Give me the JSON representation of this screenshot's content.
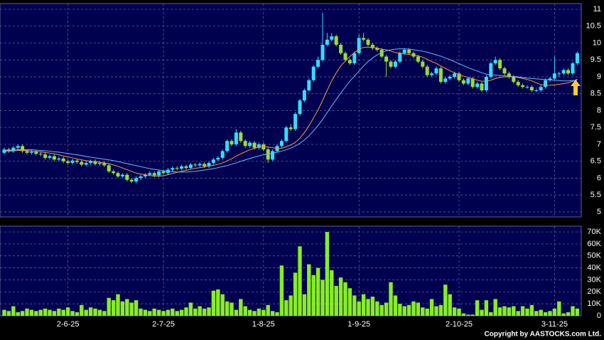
{
  "chart_data": [
    {
      "type": "candlestick",
      "up_color": "#33ddff",
      "down_color": "#99dd33",
      "grid": true,
      "ylim": [
        4.85,
        11.17
      ],
      "yticks": [
        5,
        5.5,
        6,
        6.5,
        7,
        7.5,
        8,
        8.5,
        9,
        9.5,
        10,
        10.5,
        11
      ],
      "ohlc": [
        [
          6.75,
          6.9,
          6.7,
          6.85
        ],
        [
          6.85,
          6.9,
          6.75,
          6.8
        ],
        [
          6.8,
          6.95,
          6.75,
          6.9
        ],
        [
          6.9,
          7.0,
          6.85,
          6.95
        ],
        [
          6.95,
          7.0,
          6.75,
          6.8
        ],
        [
          6.8,
          6.85,
          6.7,
          6.75
        ],
        [
          6.75,
          6.83,
          6.7,
          6.78
        ],
        [
          6.78,
          6.83,
          6.67,
          6.72
        ],
        [
          6.72,
          6.77,
          6.65,
          6.7
        ],
        [
          6.7,
          6.75,
          6.55,
          6.6
        ],
        [
          6.6,
          6.7,
          6.55,
          6.65
        ],
        [
          6.65,
          6.7,
          6.5,
          6.55
        ],
        [
          6.55,
          6.63,
          6.5,
          6.58
        ],
        [
          6.58,
          6.63,
          6.45,
          6.5
        ],
        [
          6.5,
          6.55,
          6.4,
          6.45
        ],
        [
          6.45,
          6.57,
          6.4,
          6.52
        ],
        [
          6.52,
          6.57,
          6.43,
          6.48
        ],
        [
          6.48,
          6.53,
          6.35,
          6.4
        ],
        [
          6.4,
          6.5,
          6.35,
          6.45
        ],
        [
          6.45,
          6.55,
          6.4,
          6.5
        ],
        [
          6.5,
          6.55,
          6.37,
          6.42
        ],
        [
          6.42,
          6.5,
          6.37,
          6.45
        ],
        [
          6.45,
          6.5,
          6.33,
          6.38
        ],
        [
          6.38,
          6.43,
          6.15,
          6.2
        ],
        [
          6.2,
          6.25,
          6.1,
          6.15
        ],
        [
          6.15,
          6.2,
          6.0,
          6.05
        ],
        [
          6.05,
          6.15,
          6.0,
          6.1
        ],
        [
          6.1,
          6.15,
          5.9,
          5.95
        ],
        [
          5.95,
          6.0,
          5.85,
          5.9
        ],
        [
          5.9,
          6.05,
          5.85,
          6.0
        ],
        [
          6.0,
          6.1,
          5.95,
          6.05
        ],
        [
          6.05,
          6.15,
          6.0,
          6.1
        ],
        [
          6.1,
          6.2,
          6.05,
          6.15
        ],
        [
          6.15,
          6.2,
          6.03,
          6.08
        ],
        [
          6.08,
          6.25,
          6.03,
          6.2
        ],
        [
          6.2,
          6.25,
          6.1,
          6.15
        ],
        [
          6.15,
          6.3,
          6.1,
          6.25
        ],
        [
          6.25,
          6.35,
          6.2,
          6.3
        ],
        [
          6.3,
          6.35,
          6.23,
          6.28
        ],
        [
          6.28,
          6.4,
          6.23,
          6.35
        ],
        [
          6.35,
          6.4,
          6.25,
          6.3
        ],
        [
          6.3,
          6.45,
          6.25,
          6.4
        ],
        [
          6.4,
          6.45,
          6.33,
          6.38
        ],
        [
          6.38,
          6.47,
          6.33,
          6.42
        ],
        [
          6.42,
          6.47,
          6.3,
          6.35
        ],
        [
          6.35,
          6.5,
          6.3,
          6.45
        ],
        [
          6.45,
          6.6,
          6.4,
          6.55
        ],
        [
          6.55,
          6.65,
          6.5,
          6.6
        ],
        [
          6.6,
          6.85,
          6.55,
          6.8
        ],
        [
          6.8,
          7.15,
          6.75,
          7.1
        ],
        [
          7.1,
          7.15,
          6.95,
          7.0
        ],
        [
          7.0,
          7.45,
          6.95,
          7.35
        ],
        [
          7.35,
          7.4,
          7.05,
          7.1
        ],
        [
          7.1,
          7.15,
          6.9,
          6.95
        ],
        [
          6.95,
          7.1,
          6.9,
          7.05
        ],
        [
          7.05,
          7.1,
          6.85,
          6.9
        ],
        [
          6.9,
          7.05,
          6.85,
          7.0
        ],
        [
          7.0,
          7.05,
          6.8,
          6.85
        ],
        [
          6.85,
          6.9,
          6.45,
          6.55
        ],
        [
          6.55,
          6.85,
          6.5,
          6.8
        ],
        [
          6.8,
          7.0,
          6.75,
          6.95
        ],
        [
          6.95,
          7.15,
          6.9,
          7.1
        ],
        [
          7.1,
          7.55,
          7.05,
          7.5
        ],
        [
          7.5,
          7.6,
          7.4,
          7.45
        ],
        [
          7.45,
          7.95,
          7.4,
          7.9
        ],
        [
          7.9,
          8.35,
          7.85,
          8.3
        ],
        [
          8.3,
          8.65,
          8.25,
          8.6
        ],
        [
          8.6,
          8.95,
          8.55,
          8.9
        ],
        [
          8.9,
          9.35,
          8.85,
          9.3
        ],
        [
          9.3,
          9.6,
          9.25,
          9.5
        ],
        [
          9.5,
          10.9,
          9.45,
          9.95
        ],
        [
          9.95,
          10.3,
          9.9,
          10.1
        ],
        [
          10.1,
          10.3,
          10.05,
          10.2
        ],
        [
          10.2,
          10.25,
          9.9,
          9.95
        ],
        [
          9.95,
          10.0,
          9.65,
          9.7
        ],
        [
          9.7,
          9.75,
          9.45,
          9.5
        ],
        [
          9.5,
          9.55,
          9.35,
          9.4
        ],
        [
          9.4,
          9.75,
          9.35,
          9.7
        ],
        [
          9.7,
          10.25,
          9.65,
          10.15
        ],
        [
          10.15,
          10.3,
          10.05,
          10.1
        ],
        [
          10.1,
          10.15,
          9.9,
          9.95
        ],
        [
          9.95,
          10.0,
          9.8,
          9.85
        ],
        [
          9.85,
          9.9,
          9.75,
          9.8
        ],
        [
          9.8,
          9.85,
          9.55,
          9.6
        ],
        [
          9.6,
          9.65,
          9.0,
          9.45
        ],
        [
          9.45,
          9.5,
          9.25,
          9.3
        ],
        [
          9.3,
          9.5,
          9.25,
          9.45
        ],
        [
          9.45,
          9.75,
          9.4,
          9.7
        ],
        [
          9.7,
          9.85,
          9.65,
          9.8
        ],
        [
          9.8,
          9.85,
          9.65,
          9.7
        ],
        [
          9.7,
          9.75,
          9.55,
          9.6
        ],
        [
          9.6,
          9.65,
          9.4,
          9.45
        ],
        [
          9.45,
          9.5,
          9.25,
          9.3
        ],
        [
          9.3,
          9.35,
          9.0,
          9.05
        ],
        [
          9.05,
          9.15,
          9.0,
          9.1
        ],
        [
          9.1,
          9.3,
          9.05,
          9.25
        ],
        [
          9.25,
          9.3,
          8.8,
          8.85
        ],
        [
          8.85,
          9.0,
          8.8,
          8.95
        ],
        [
          8.95,
          9.05,
          8.9,
          9.0
        ],
        [
          9.0,
          9.15,
          8.95,
          9.1
        ],
        [
          9.1,
          9.15,
          8.85,
          8.9
        ],
        [
          8.9,
          8.95,
          8.75,
          8.8
        ],
        [
          8.8,
          9.0,
          8.75,
          8.95
        ],
        [
          8.95,
          9.0,
          8.65,
          8.7
        ],
        [
          8.7,
          8.85,
          8.65,
          8.8
        ],
        [
          8.8,
          8.85,
          8.55,
          8.6
        ],
        [
          8.6,
          9.05,
          8.55,
          9.0
        ],
        [
          9.0,
          9.45,
          8.95,
          9.4
        ],
        [
          9.4,
          9.6,
          9.35,
          9.5
        ],
        [
          9.5,
          9.55,
          9.2,
          9.25
        ],
        [
          9.25,
          9.3,
          9.05,
          9.1
        ],
        [
          9.1,
          9.15,
          8.95,
          9.0
        ],
        [
          9.0,
          9.05,
          8.8,
          8.85
        ],
        [
          8.85,
          8.9,
          8.7,
          8.75
        ],
        [
          8.75,
          8.8,
          8.65,
          8.7
        ],
        [
          8.7,
          8.75,
          8.65,
          8.7
        ],
        [
          8.7,
          8.75,
          8.55,
          8.6
        ],
        [
          8.6,
          8.65,
          8.55,
          8.6
        ],
        [
          8.6,
          8.75,
          8.55,
          8.7
        ],
        [
          8.7,
          8.95,
          8.65,
          8.9
        ],
        [
          8.9,
          9.0,
          8.85,
          8.95
        ],
        [
          8.95,
          9.6,
          8.9,
          9.1
        ],
        [
          9.1,
          9.15,
          9.0,
          9.1
        ],
        [
          9.1,
          9.25,
          9.05,
          9.2
        ],
        [
          9.2,
          9.25,
          9.05,
          9.1
        ],
        [
          9.1,
          9.45,
          9.05,
          9.4
        ],
        [
          9.4,
          9.75,
          9.35,
          9.7
        ]
      ],
      "ma_lines": [
        {
          "color": "#ff9933",
          "values": [
            6.8,
            6.8,
            6.8,
            6.82,
            6.82,
            6.82,
            6.8,
            6.79,
            6.78,
            6.76,
            6.74,
            6.72,
            6.69,
            6.66,
            6.63,
            6.6,
            6.57,
            6.54,
            6.52,
            6.5,
            6.49,
            6.47,
            6.45,
            6.43,
            6.39,
            6.35,
            6.3,
            6.25,
            6.2,
            6.15,
            6.12,
            6.1,
            6.08,
            6.06,
            6.06,
            6.07,
            6.1,
            6.14,
            6.17,
            6.2,
            6.23,
            6.26,
            6.29,
            6.31,
            6.33,
            6.36,
            6.38,
            6.41,
            6.45,
            6.51,
            6.57,
            6.65,
            6.72,
            6.78,
            6.84,
            6.88,
            6.92,
            6.93,
            6.92,
            6.9,
            6.88,
            6.88,
            6.93,
            6.98,
            7.06,
            7.18,
            7.35,
            7.55,
            7.78,
            8.02,
            8.3,
            8.6,
            8.88,
            9.12,
            9.32,
            9.47,
            9.6,
            9.72,
            9.82,
            9.87,
            9.88,
            9.87,
            9.85,
            9.82,
            9.8,
            9.76,
            9.72,
            9.7,
            9.68,
            9.66,
            9.64,
            9.62,
            9.58,
            9.52,
            9.45,
            9.4,
            9.32,
            9.25,
            9.18,
            9.12,
            9.07,
            9.02,
            8.98,
            8.94,
            8.9,
            8.87,
            8.87,
            8.9,
            8.95,
            8.98,
            9.0,
            9.0,
            9.0,
            8.98,
            8.95,
            8.92,
            8.88,
            8.82,
            8.77,
            8.75,
            8.75,
            8.76,
            8.78,
            8.8,
            8.82,
            8.87,
            8.93
          ]
        },
        {
          "color": "#66bbff",
          "values": [
            6.82,
            6.82,
            6.83,
            6.84,
            6.84,
            6.84,
            6.84,
            6.83,
            6.82,
            6.81,
            6.8,
            6.78,
            6.77,
            6.75,
            6.73,
            6.71,
            6.69,
            6.67,
            6.64,
            6.62,
            6.6,
            6.58,
            6.56,
            6.54,
            6.52,
            6.49,
            6.46,
            6.43,
            6.4,
            6.37,
            6.34,
            6.31,
            6.28,
            6.26,
            6.24,
            6.22,
            6.2,
            6.19,
            6.18,
            6.18,
            6.18,
            6.19,
            6.2,
            6.22,
            6.24,
            6.26,
            6.28,
            6.31,
            6.34,
            6.37,
            6.41,
            6.45,
            6.5,
            6.54,
            6.58,
            6.62,
            6.66,
            6.69,
            6.71,
            6.74,
            6.77,
            6.8,
            6.84,
            6.89,
            6.95,
            7.03,
            7.13,
            7.25,
            7.4,
            7.56,
            7.74,
            7.94,
            8.14,
            8.33,
            8.52,
            8.7,
            8.87,
            9.02,
            9.17,
            9.32,
            9.45,
            9.56,
            9.65,
            9.72,
            9.77,
            9.8,
            9.82,
            9.83,
            9.83,
            9.82,
            9.8,
            9.78,
            9.76,
            9.73,
            9.69,
            9.65,
            9.61,
            9.56,
            9.51,
            9.45,
            9.39,
            9.33,
            9.27,
            9.22,
            9.17,
            9.12,
            9.08,
            9.06,
            9.05,
            9.04,
            9.03,
            9.02,
            9.01,
            9.0,
            8.98,
            8.96,
            8.95,
            8.94,
            8.93,
            8.92,
            8.91,
            8.9,
            8.89,
            8.88,
            8.88,
            8.89,
            8.9
          ]
        }
      ]
    },
    {
      "type": "bar",
      "color": "#88ee22",
      "grid": true,
      "ylim": [
        0,
        74800
      ],
      "yticks": [
        0,
        {
          "value": 10000,
          "label": "10K"
        },
        {
          "value": 20000,
          "label": "20K"
        },
        {
          "value": 30000,
          "label": "30K"
        },
        {
          "value": 40000,
          "label": "40K"
        },
        {
          "value": 50000,
          "label": "50K"
        },
        {
          "value": 60000,
          "label": "60K"
        },
        {
          "value": 70000,
          "label": "70K"
        }
      ],
      "categories": [
        null,
        null,
        null,
        null,
        null,
        null,
        null,
        null,
        null,
        null,
        null,
        null,
        null,
        null,
        "2-6-25",
        null,
        null,
        null,
        null,
        null,
        null,
        null,
        null,
        null,
        null,
        null,
        null,
        null,
        null,
        null,
        null,
        null,
        null,
        null,
        null,
        "2-7-25",
        null,
        null,
        null,
        null,
        null,
        null,
        null,
        null,
        null,
        null,
        null,
        null,
        null,
        null,
        null,
        null,
        null,
        null,
        null,
        null,
        null,
        "1-8-25",
        null,
        null,
        null,
        null,
        null,
        null,
        null,
        null,
        null,
        null,
        null,
        null,
        null,
        null,
        null,
        null,
        null,
        null,
        null,
        null,
        "1-9-25",
        null,
        null,
        null,
        null,
        null,
        null,
        null,
        null,
        null,
        null,
        null,
        null,
        null,
        null,
        null,
        null,
        null,
        null,
        null,
        null,
        null,
        "2-10-25",
        null,
        null,
        null,
        null,
        null,
        null,
        null,
        null,
        null,
        null,
        null,
        null,
        null,
        null,
        null,
        null,
        null,
        null,
        null,
        null,
        "3-11-25",
        null,
        null,
        null,
        null,
        null
      ],
      "values": [
        5000,
        4000,
        8000,
        3000,
        4000,
        6000,
        5000,
        4000,
        5000,
        6000,
        5000,
        4000,
        6000,
        5000,
        7000,
        4000,
        3000,
        9000,
        5000,
        7000,
        6000,
        5000,
        4000,
        15000,
        13000,
        18000,
        12000,
        14000,
        11000,
        13000,
        6000,
        5000,
        4000,
        6000,
        5000,
        4000,
        5000,
        6000,
        4000,
        5000,
        7000,
        11000,
        6000,
        8000,
        6000,
        7000,
        21000,
        22000,
        18000,
        12000,
        11000,
        5000,
        14000,
        8000,
        5000,
        4000,
        6000,
        5000,
        9000,
        4000,
        3000,
        42000,
        13000,
        17000,
        36000,
        58000,
        18000,
        43000,
        34000,
        40000,
        30000,
        70000,
        38000,
        25000,
        32000,
        28000,
        23000,
        17000,
        12000,
        18000,
        14000,
        16000,
        12000,
        9000,
        11000,
        28000,
        17000,
        10000,
        8000,
        9000,
        12000,
        11000,
        7000,
        6000,
        14000,
        8000,
        9000,
        26000,
        18000,
        7000,
        6000,
        2000,
        1000,
        1000,
        13000,
        5000,
        13000,
        3000,
        14000,
        7000,
        8000,
        7000,
        8000,
        4000,
        8000,
        6000,
        9000,
        4000,
        5000,
        3000,
        4000,
        6000,
        12000,
        2000,
        3000,
        8000,
        6000
      ]
    }
  ],
  "footer": "Copyright by AASTOCKS.com Ltd."
}
